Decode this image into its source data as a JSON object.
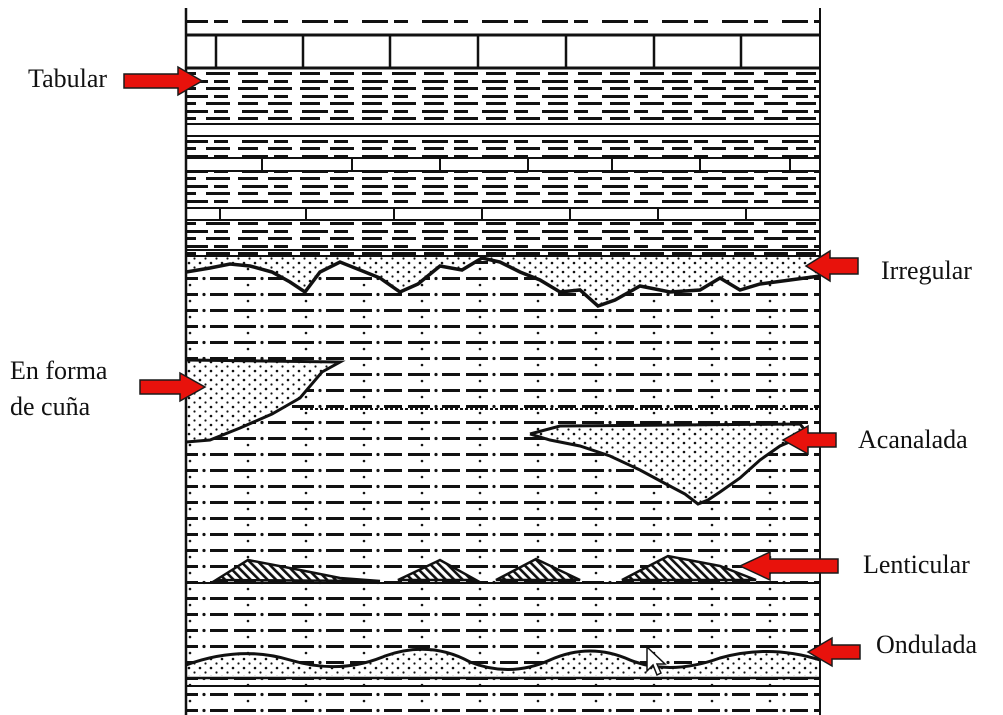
{
  "labels": {
    "tabular": "Tabular",
    "irregular": "Irregular",
    "cuna_line1": "En forma",
    "cuna_line2": "de cuña",
    "acanalada": "Acanalada",
    "lenticular": "Lenticular",
    "ondulada": "Ondulada"
  },
  "colors": {
    "arrow_fill": "#e8120c",
    "arrow_stroke": "#1a1a1a",
    "ink": "#111111",
    "background": "#ffffff"
  },
  "icons": {
    "arrow": "red-arrow-icon",
    "cursor": "mouse-pointer-icon"
  }
}
